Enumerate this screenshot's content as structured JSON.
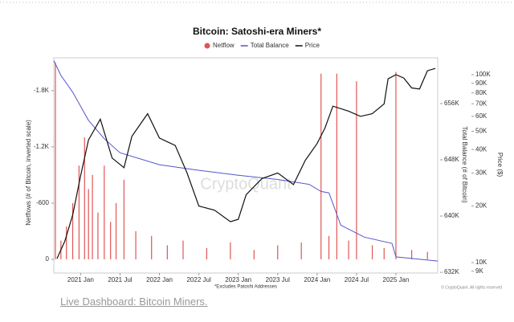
{
  "chart_data": {
    "type": "combo",
    "title": "Bitcoin: Satoshi-era Miners*",
    "footnote": "*Excludes Patoshi Addresses",
    "copyright": "© CryptoQuant. All rights reserved",
    "watermark": "CryptoQuant",
    "ylabel": "Netflows (# of Bitcoin, inverted scale)",
    "y2label": "Total Balance (# of Bitcoin)",
    "y3label": "Price ($)",
    "xlim": [
      2020.66,
      2025.53
    ],
    "xticks": [
      {
        "value": 2021.0,
        "label": "2021 Jan"
      },
      {
        "value": 2021.5,
        "label": "2021 Jul"
      },
      {
        "value": 2022.0,
        "label": "2022 Jan"
      },
      {
        "value": 2022.5,
        "label": "2022 Jul"
      },
      {
        "value": 2023.0,
        "label": "2023 Jan"
      },
      {
        "value": 2023.5,
        "label": "2023 Jul"
      },
      {
        "value": 2024.0,
        "label": "2024 Jan"
      },
      {
        "value": 2024.5,
        "label": "2024 Jul"
      },
      {
        "value": 2025.0,
        "label": "2025 Jan"
      }
    ],
    "ylim": [
      146,
      -2150
    ],
    "yticks": [
      0,
      -600,
      {
        "value": -1200,
        "label": "-1.2K"
      },
      {
        "value": -1800,
        "label": "-1.8K"
      }
    ],
    "y2lim": [
      631900,
      662500
    ],
    "y2ticks": [
      {
        "value": 632000,
        "label": "632K"
      },
      {
        "value": 640000,
        "label": "640K"
      },
      {
        "value": 648000,
        "label": "648K"
      },
      {
        "value": 656000,
        "label": "656K"
      }
    ],
    "y3lim": [
      8800,
      123000
    ],
    "y3scale": "log",
    "y3ticks": [
      {
        "value": 9000,
        "label": "9K"
      },
      {
        "value": 10000,
        "label": "10K"
      },
      {
        "value": 20000,
        "label": "20K"
      },
      {
        "value": 30000,
        "label": "30K"
      },
      {
        "value": 40000,
        "label": "40K"
      },
      {
        "value": 50000,
        "label": "50K"
      },
      {
        "value": 60000,
        "label": "60K"
      },
      {
        "value": 70000,
        "label": "70K"
      },
      {
        "value": 80000,
        "label": "80K"
      },
      {
        "value": 90000,
        "label": "90K"
      },
      {
        "value": 100000,
        "label": "100K"
      }
    ],
    "series": [
      {
        "name": "Netflow",
        "type": "bar",
        "axis": "y",
        "color": "#e05555",
        "x": [
          2020.68,
          2020.75,
          2020.82,
          2020.9,
          2020.98,
          2021.05,
          2021.1,
          2021.15,
          2021.22,
          2021.3,
          2021.38,
          2021.45,
          2021.55,
          2021.7,
          2021.9,
          2022.1,
          2022.3,
          2022.6,
          2022.9,
          2023.2,
          2023.5,
          2023.8,
          2024.05,
          2024.15,
          2024.25,
          2024.4,
          2024.5,
          2024.7,
          2024.85,
          2025.0,
          2025.2,
          2025.4
        ],
        "values": [
          -2100,
          -200,
          -350,
          -600,
          -1000,
          -1300,
          -750,
          -900,
          -500,
          -1000,
          -400,
          -600,
          -850,
          -300,
          -250,
          -150,
          -200,
          -120,
          -180,
          -100,
          -150,
          -180,
          -1980,
          -250,
          -1980,
          -200,
          -1900,
          -150,
          -120,
          -2000,
          -100,
          -80
        ]
      },
      {
        "name": "Total Balance",
        "type": "line",
        "axis": "y2",
        "color": "#5555cc",
        "x": [
          2020.66,
          2020.75,
          2020.9,
          2021.1,
          2021.3,
          2021.5,
          2022.0,
          2022.5,
          2023.0,
          2023.5,
          2023.9,
          2024.05,
          2024.15,
          2024.3,
          2024.6,
          2024.95,
          2025.0,
          2025.53
        ],
        "values": [
          662100,
          660000,
          657600,
          653600,
          651000,
          649000,
          647300,
          646500,
          645800,
          645200,
          644500,
          643500,
          643300,
          638700,
          637000,
          636100,
          634200,
          633600
        ]
      },
      {
        "name": "Price",
        "type": "line",
        "axis": "y3",
        "color": "#111111",
        "x": [
          2020.7,
          2020.8,
          2020.9,
          2021.0,
          2021.1,
          2021.25,
          2021.4,
          2021.55,
          2021.65,
          2021.85,
          2022.0,
          2022.2,
          2022.35,
          2022.5,
          2022.7,
          2022.9,
          2023.0,
          2023.1,
          2023.3,
          2023.5,
          2023.7,
          2023.85,
          2024.0,
          2024.1,
          2024.2,
          2024.4,
          2024.55,
          2024.7,
          2024.85,
          2024.9,
          2025.0,
          2025.1,
          2025.2,
          2025.3,
          2025.4,
          2025.5
        ],
        "values": [
          10500,
          13000,
          18000,
          29000,
          45000,
          58000,
          36000,
          32000,
          47000,
          62000,
          46000,
          42000,
          30000,
          20000,
          19000,
          16500,
          17000,
          23000,
          28000,
          30000,
          26000,
          35000,
          43000,
          52000,
          68000,
          64000,
          60000,
          62000,
          70000,
          95000,
          100000,
          96000,
          85000,
          84000,
          105000,
          108000
        ]
      }
    ]
  },
  "link": "Live Dashboard: Bitcoin Miners."
}
